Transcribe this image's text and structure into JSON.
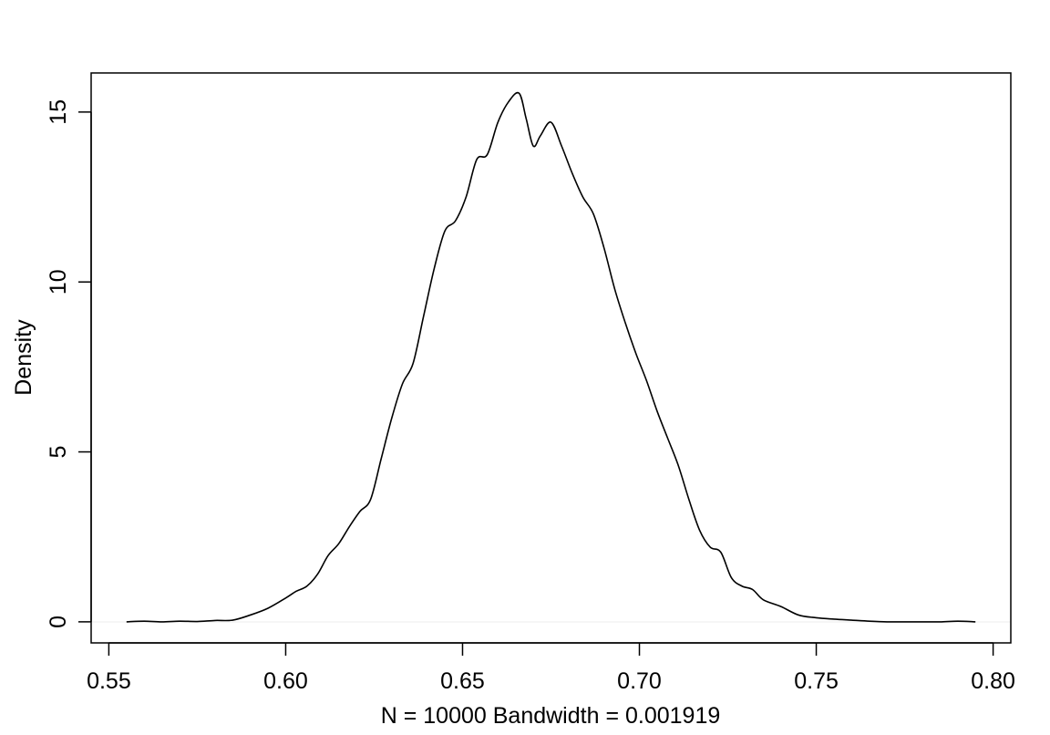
{
  "chart_data": {
    "type": "line",
    "title": "",
    "xlabel": "N = 10000   Bandwidth = 0.001919",
    "ylabel": "Density",
    "xlim": [
      0.545,
      0.805
    ],
    "ylim": [
      -0.62,
      16.15
    ],
    "x_ticks": [
      0.55,
      0.6,
      0.65,
      0.7,
      0.75,
      0.8
    ],
    "x_tick_labels": [
      "0.55",
      "0.60",
      "0.65",
      "0.70",
      "0.75",
      "0.80"
    ],
    "y_ticks": [
      0,
      5,
      10,
      15
    ],
    "y_tick_labels": [
      "0",
      "5",
      "10",
      "15"
    ],
    "grid": false,
    "series": [
      {
        "color": "#000000",
        "x": [
          0.555,
          0.56,
          0.565,
          0.57,
          0.575,
          0.58,
          0.585,
          0.59,
          0.595,
          0.6,
          0.603,
          0.606,
          0.609,
          0.612,
          0.615,
          0.618,
          0.621,
          0.624,
          0.627,
          0.63,
          0.633,
          0.636,
          0.639,
          0.642,
          0.645,
          0.648,
          0.651,
          0.654,
          0.657,
          0.66,
          0.663,
          0.666,
          0.668,
          0.67,
          0.672,
          0.675,
          0.678,
          0.681,
          0.684,
          0.687,
          0.69,
          0.693,
          0.696,
          0.699,
          0.702,
          0.705,
          0.708,
          0.711,
          0.714,
          0.717,
          0.72,
          0.723,
          0.726,
          0.729,
          0.732,
          0.735,
          0.74,
          0.745,
          0.75,
          0.755,
          0.76,
          0.765,
          0.77,
          0.775,
          0.78,
          0.785,
          0.79,
          0.795
        ],
        "y": [
          0.0,
          0.02,
          0.0,
          0.02,
          0.01,
          0.04,
          0.05,
          0.2,
          0.4,
          0.7,
          0.9,
          1.05,
          1.4,
          1.95,
          2.3,
          2.8,
          3.25,
          3.6,
          4.8,
          6.0,
          7.0,
          7.6,
          9.0,
          10.4,
          11.5,
          11.8,
          12.5,
          13.6,
          13.75,
          14.7,
          15.3,
          15.55,
          14.8,
          14.0,
          14.3,
          14.7,
          14.0,
          13.2,
          12.5,
          12.0,
          11.0,
          9.8,
          8.8,
          7.9,
          7.1,
          6.2,
          5.4,
          4.6,
          3.6,
          2.7,
          2.2,
          2.05,
          1.3,
          1.05,
          0.95,
          0.65,
          0.45,
          0.2,
          0.12,
          0.08,
          0.05,
          0.02,
          0.0,
          0.0,
          0.0,
          0.0,
          0.02,
          0.0
        ]
      }
    ]
  }
}
